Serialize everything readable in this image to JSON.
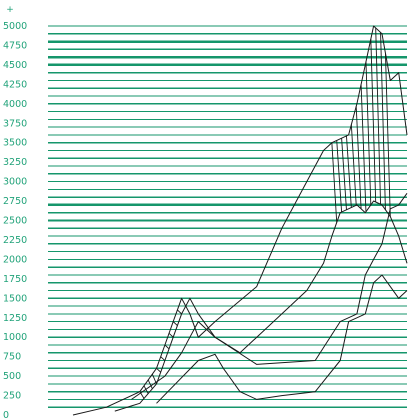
{
  "chart_data": {
    "type": "line",
    "title": "",
    "xlabel": "",
    "ylabel": "",
    "y_axis_marker": "+",
    "ylim": [
      0,
      5000
    ],
    "xlim": [
      0,
      43
    ],
    "y_ticks": [
      0,
      250,
      500,
      750,
      1000,
      1250,
      1500,
      1750,
      2000,
      2250,
      2500,
      2750,
      3000,
      3250,
      3500,
      3750,
      4000,
      4250,
      4500,
      4750,
      5000
    ],
    "y_tick_labels": [
      "0",
      "250",
      "500",
      "750",
      "1000",
      "1250",
      "1500",
      "1750",
      "2000",
      "2250",
      "2500",
      "2750",
      "3000",
      "3250",
      "3500",
      "3750",
      "4000",
      "4250",
      "4500",
      "4750",
      "5000"
    ],
    "x_ticks_visible": false,
    "grid": {
      "horizontal": true,
      "color": "#15966b",
      "minor_step": 100,
      "emphasized": [
        2500,
        2700,
        4500,
        4600,
        4800
      ]
    },
    "legend": "none",
    "series": [
      {
        "x": [
          3,
          7,
          11,
          13,
          14,
          15,
          16,
          17,
          18,
          20,
          25,
          28,
          31,
          33,
          34,
          36,
          37,
          38,
          39,
          40,
          41,
          42,
          43
        ],
        "values": [
          0,
          100,
          300,
          600,
          900,
          1200,
          1500,
          1300,
          1000,
          1200,
          1650,
          2400,
          3000,
          3400,
          3500,
          3600,
          4000,
          4500,
          5000,
          4900,
          4300,
          4400,
          3600
        ]
      },
      {
        "x": [
          8,
          11,
          13,
          14,
          15,
          16,
          17,
          18,
          20,
          23,
          28,
          31,
          33,
          34,
          35,
          37,
          38,
          39,
          40,
          41,
          42,
          43
        ],
        "values": [
          50,
          150,
          400,
          700,
          1000,
          1300,
          1500,
          1300,
          1000,
          800,
          1300,
          1600,
          1950,
          2300,
          2600,
          2700,
          2600,
          2750,
          2700,
          2550,
          2300,
          1950
        ]
      },
      {
        "x": [
          10,
          14,
          16,
          17,
          18,
          20,
          25,
          32,
          35,
          37,
          38,
          39,
          40,
          41,
          42,
          43
        ],
        "values": [
          200,
          500,
          800,
          1000,
          1200,
          1000,
          650,
          700,
          1200,
          1300,
          1800,
          2000,
          2200,
          2650,
          2700,
          2850
        ]
      },
      {
        "x": [
          13,
          18,
          20,
          21,
          22,
          23,
          25,
          28,
          32,
          35,
          36,
          37,
          38,
          39,
          40,
          41,
          42,
          43
        ],
        "values": [
          150,
          700,
          780,
          600,
          450,
          300,
          200,
          250,
          300,
          700,
          1200,
          1250,
          1300,
          1700,
          1800,
          1650,
          1500,
          1600
        ]
      }
    ]
  }
}
